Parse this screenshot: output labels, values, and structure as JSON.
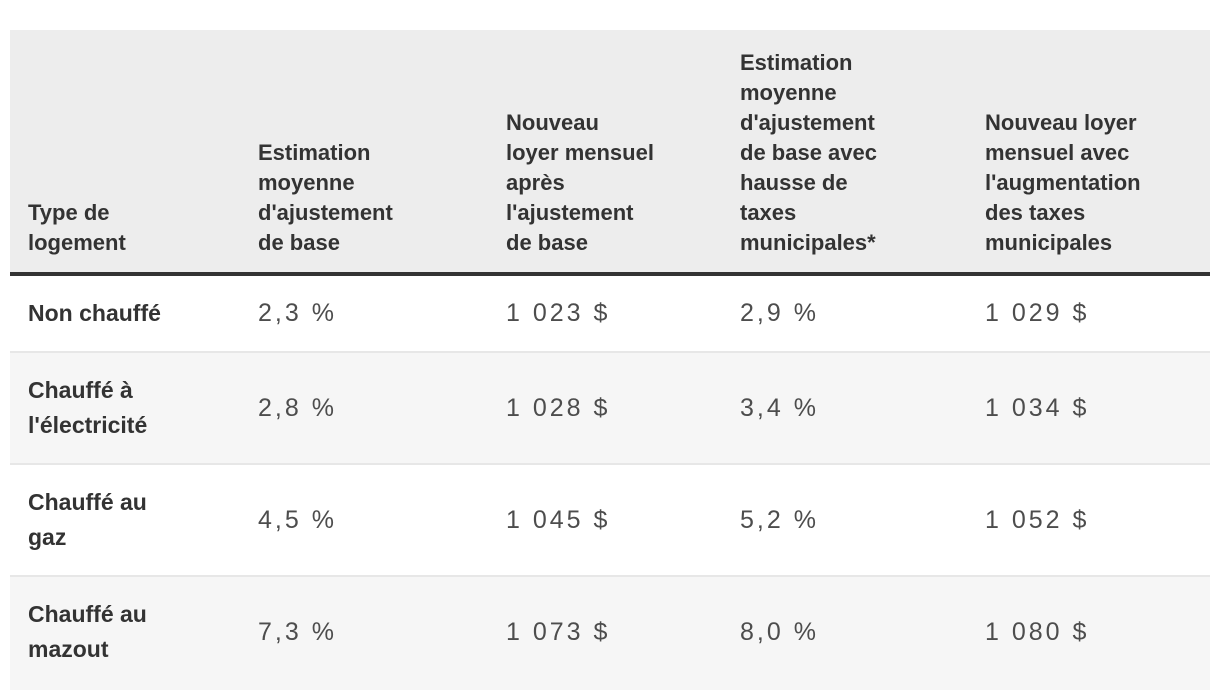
{
  "table": {
    "columns": [
      {
        "label": "Type de\nlogement"
      },
      {
        "label": "Estimation\nmoyenne\nd'ajustement\nde base"
      },
      {
        "label": "Nouveau\nloyer mensuel\naprès\nl'ajustement\nde base"
      },
      {
        "label": "Estimation\nmoyenne\nd'ajustement\nde base avec\nhausse de\ntaxes\nmunicipales*"
      },
      {
        "label": "Nouveau loyer\nmensuel avec\nl'augmentation\ndes taxes\nmunicipales"
      }
    ],
    "rows": [
      {
        "type": "Non chauffé",
        "base_adjustment_pct": "2,3 %",
        "new_rent_base": "1 023 $",
        "adjustment_with_taxes_pct": "2,9 %",
        "new_rent_with_taxes": "1 029 $"
      },
      {
        "type": "Chauffé à\nl'électricité",
        "base_adjustment_pct": "2,8 %",
        "new_rent_base": "1 028 $",
        "adjustment_with_taxes_pct": "3,4 %",
        "new_rent_with_taxes": "1 034 $"
      },
      {
        "type": "Chauffé au\ngaz",
        "base_adjustment_pct": "4,5 %",
        "new_rent_base": "1 045 $",
        "adjustment_with_taxes_pct": "5,2 %",
        "new_rent_with_taxes": "1 052 $"
      },
      {
        "type": "Chauffé au\nmazout",
        "base_adjustment_pct": "7,3 %",
        "new_rent_base": "1 073 $",
        "adjustment_with_taxes_pct": "8,0 %",
        "new_rent_with_taxes": "1 080 $"
      }
    ],
    "colors": {
      "header_background": "#ededed",
      "alt_row_background": "#f6f6f6",
      "header_rule": "#333333",
      "row_divider": "#e7e7e7",
      "heading_text": "#333333",
      "value_text": "#4d4d4d"
    }
  },
  "chart_data": {
    "type": "table",
    "title": "",
    "columns": [
      "Type de logement",
      "Estimation moyenne d'ajustement de base",
      "Nouveau loyer mensuel après l'ajustement de base",
      "Estimation moyenne d'ajustement de base avec hausse de taxes municipales*",
      "Nouveau loyer mensuel avec l'augmentation des taxes municipales"
    ],
    "rows": [
      [
        "Non chauffé",
        "2,3 %",
        "1 023 $",
        "2,9 %",
        "1 029 $"
      ],
      [
        "Chauffé à l'électricité",
        "2,8 %",
        "1 028 $",
        "3,4 %",
        "1 034 $"
      ],
      [
        "Chauffé au gaz",
        "4,5 %",
        "1 045 $",
        "5,2 %",
        "1 052 $"
      ],
      [
        "Chauffé au mazout",
        "7,3 %",
        "1 073 $",
        "8,0 %",
        "1 080 $"
      ]
    ],
    "base_adjustment_pct": [
      2.3,
      2.8,
      4.5,
      7.3
    ],
    "new_rent_base_dollars": [
      1023,
      1028,
      1045,
      1073
    ],
    "adjustment_with_taxes_pct": [
      2.9,
      3.4,
      5.2,
      8.0
    ],
    "new_rent_with_taxes_dollars": [
      1029,
      1034,
      1052,
      1080
    ]
  }
}
